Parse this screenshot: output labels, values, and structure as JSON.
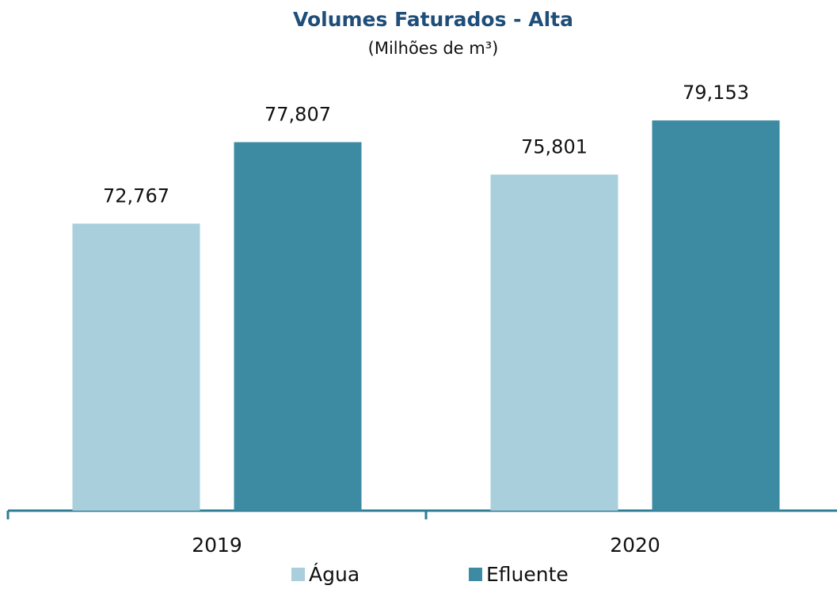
{
  "chart_data": {
    "type": "bar",
    "title": "Volumes Faturados -  Alta",
    "subtitle": "(Milhões de m³)",
    "categories": [
      "2019",
      "2020"
    ],
    "series": [
      {
        "name": "Água",
        "color": "#a9cfdd",
        "values": [
          72.767,
          75.801
        ],
        "value_labels": [
          "72,767",
          "75,801"
        ]
      },
      {
        "name": "Efluente",
        "color": "#3d8ba3",
        "values": [
          77.807,
          79.153
        ],
        "value_labels": [
          "77,807",
          "79,153"
        ]
      }
    ],
    "ylim": [
      55,
      82
    ],
    "legend": "bottom"
  }
}
